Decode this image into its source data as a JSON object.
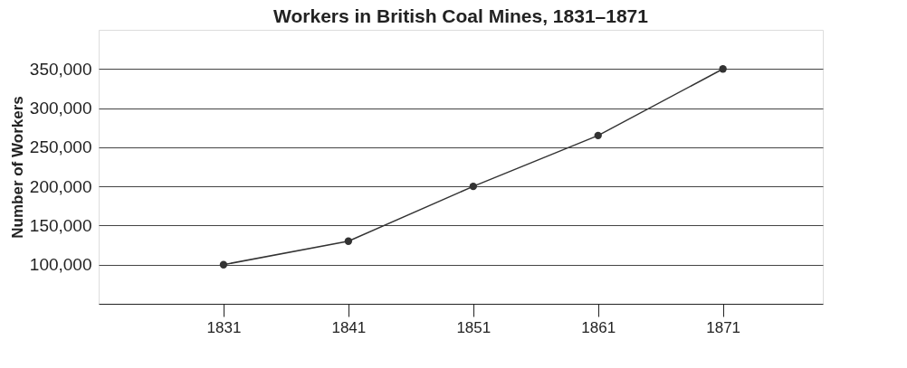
{
  "chart_data": {
    "type": "line",
    "title": "Workers in British Coal Mines, 1831–1871",
    "ylabel": "Number of Workers",
    "x": [
      1831,
      1841,
      1851,
      1861,
      1871
    ],
    "series": [
      {
        "color": "#333333",
        "values": [
          100000,
          130000,
          200000,
          265000,
          350000
        ]
      }
    ],
    "xlim": [
      1821,
      1879
    ],
    "xticks": [
      1831,
      1841,
      1851,
      1861,
      1871
    ],
    "ylim": [
      50000,
      400000
    ],
    "yticks": [
      {
        "value": 100000,
        "label": "100,000"
      },
      {
        "value": 150000,
        "label": "150,000"
      },
      {
        "value": 200000,
        "label": "200,000"
      },
      {
        "value": 250000,
        "label": "250,000"
      },
      {
        "value": 300000,
        "label": "300,000"
      },
      {
        "value": 350000,
        "label": "350,000"
      }
    ],
    "grid": "y",
    "marker": "circle"
  }
}
